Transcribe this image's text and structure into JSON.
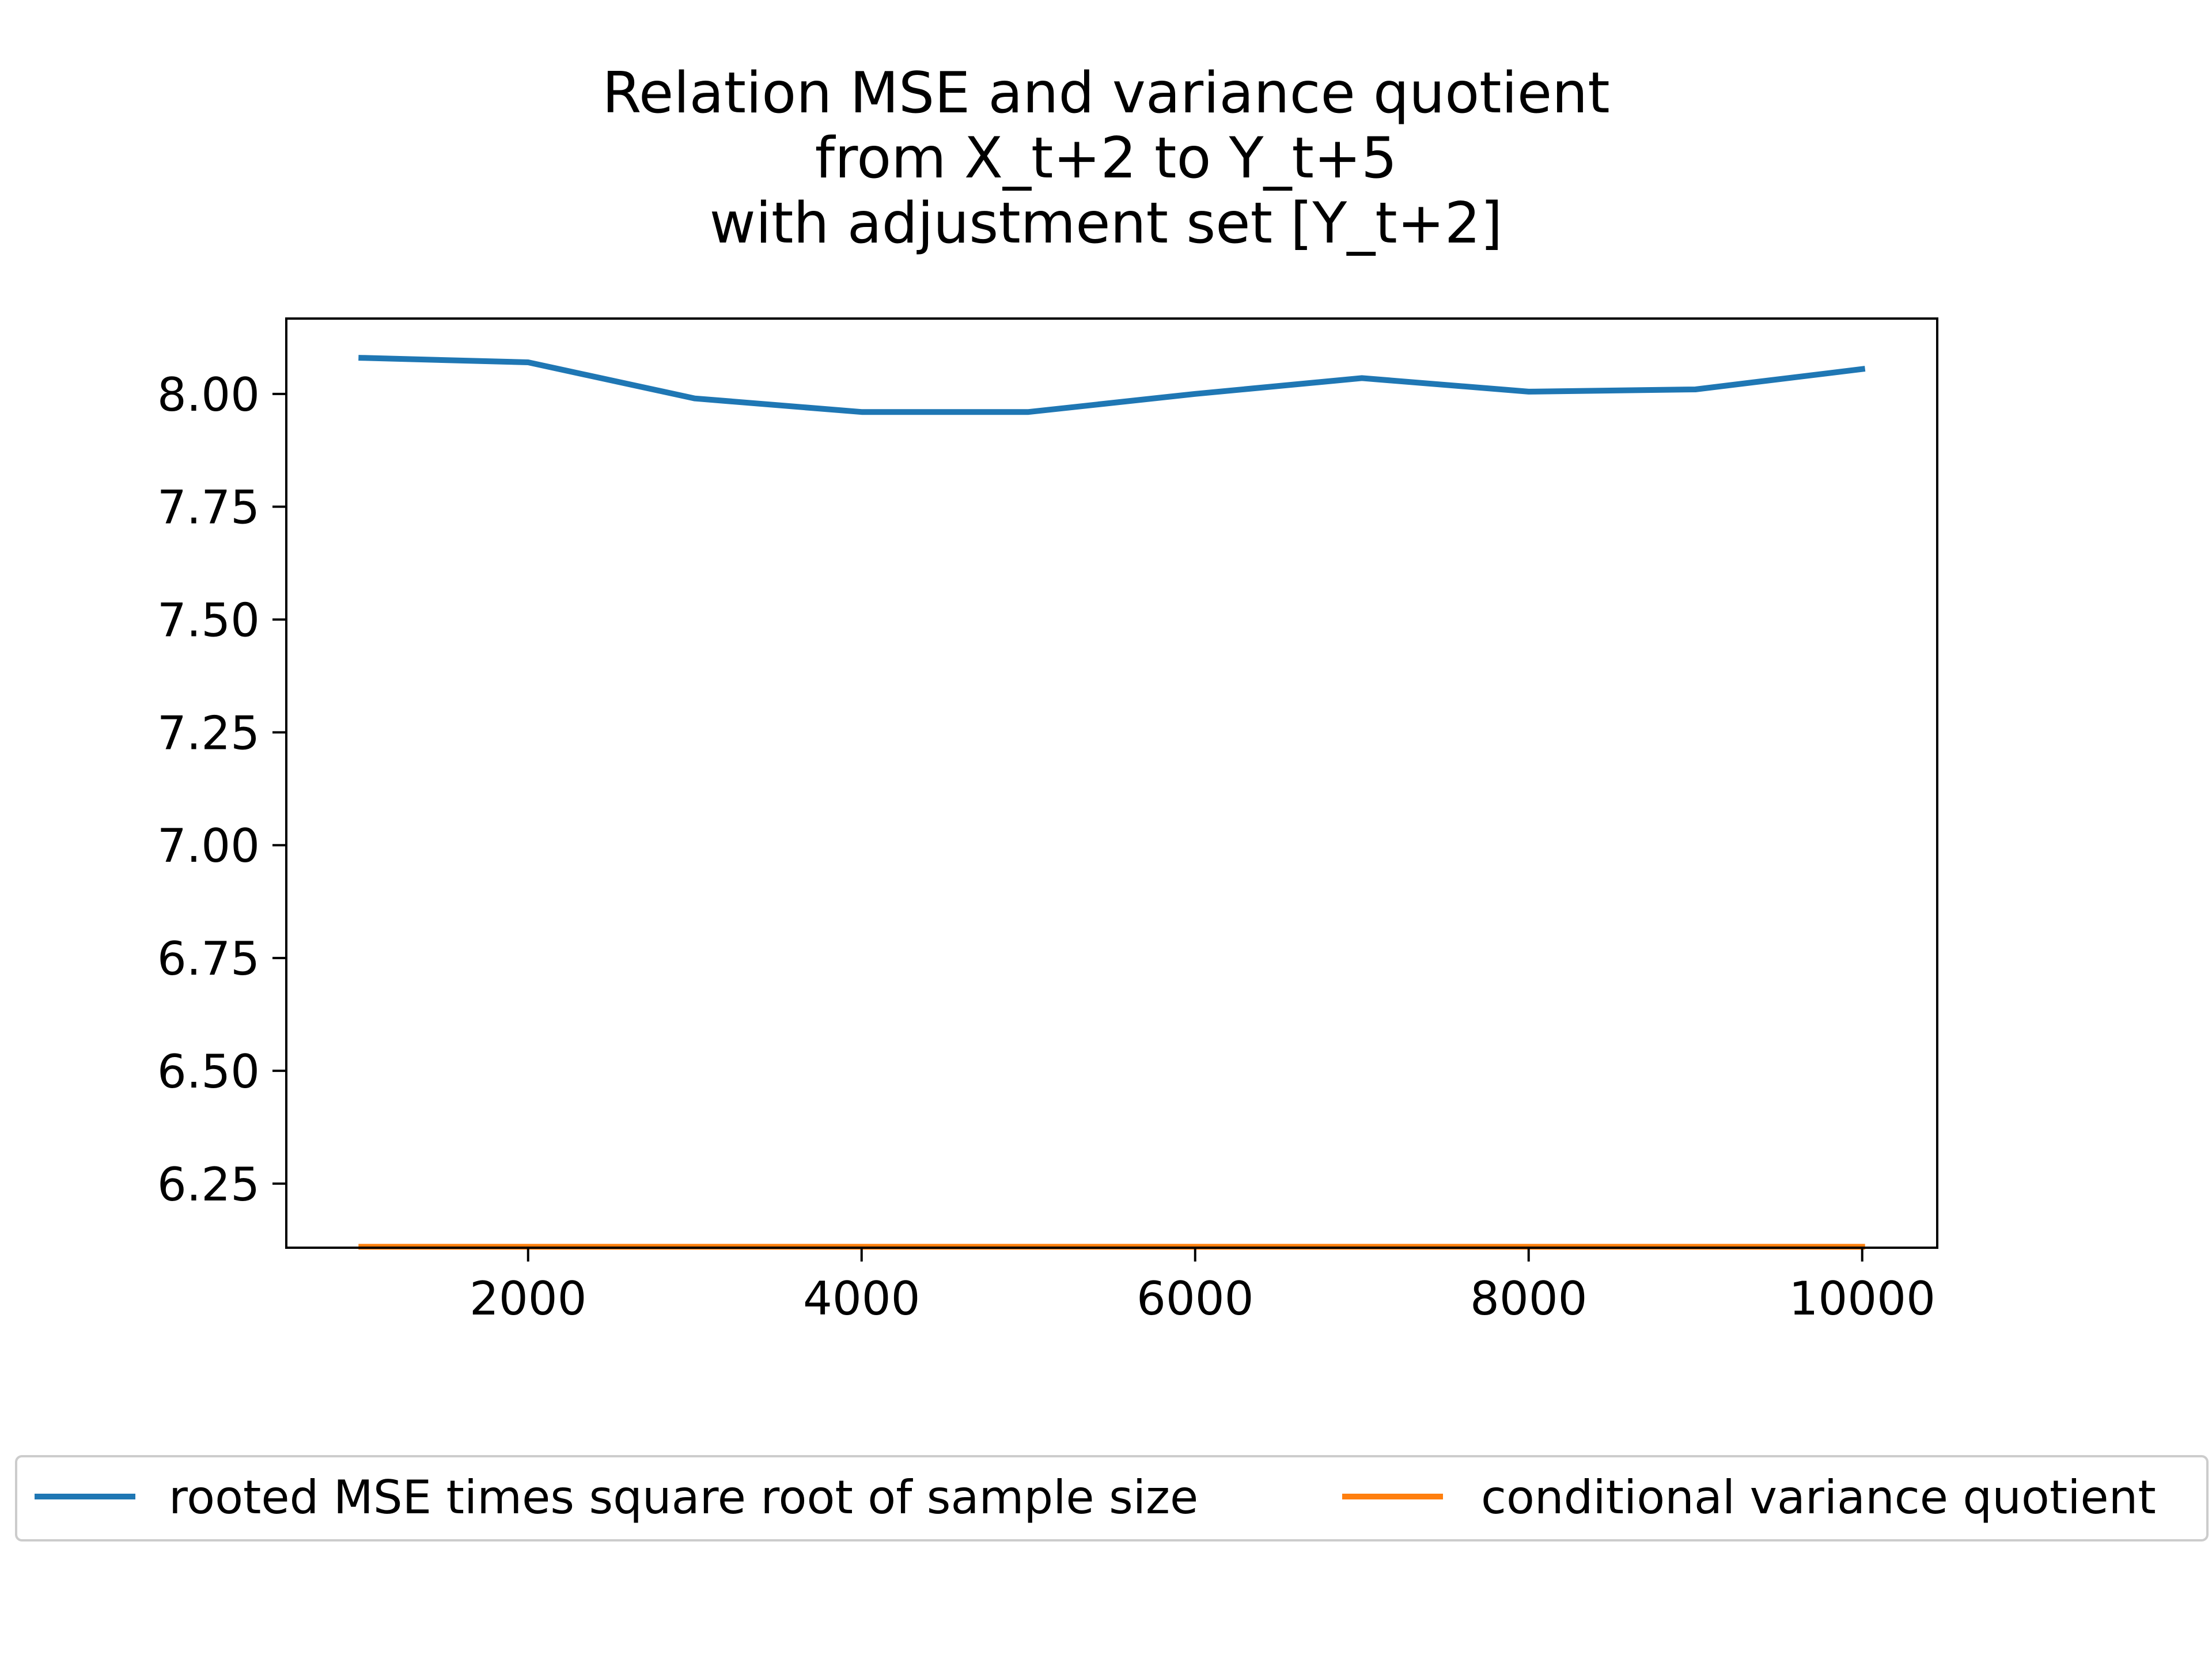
{
  "chart_data": {
    "type": "line",
    "title": [
      "Relation MSE and variance quotient",
      "from X_t+2 to Y_t+5",
      "with adjustment set [Y_t+2]"
    ],
    "xlabel": "",
    "ylabel": "",
    "xlim": [
      550,
      10450
    ],
    "ylim": [
      6.108,
      8.167
    ],
    "xticks": [
      2000,
      4000,
      6000,
      8000,
      10000
    ],
    "xtick_labels": [
      "2000",
      "4000",
      "6000",
      "8000",
      "10000"
    ],
    "yticks": [
      6.25,
      6.5,
      6.75,
      7.0,
      7.25,
      7.5,
      7.75,
      8.0
    ],
    "ytick_labels": [
      "6.25",
      "6.50",
      "6.75",
      "7.00",
      "7.25",
      "7.50",
      "7.75",
      "8.00"
    ],
    "grid": false,
    "legend_position": "bottom-outside",
    "x": [
      1000,
      2000,
      3000,
      4000,
      5000,
      6000,
      7000,
      8000,
      9000,
      10000
    ],
    "series": [
      {
        "name": "rooted MSE times square root of sample size",
        "color": "#1f77b4",
        "values": [
          8.08,
          8.07,
          7.99,
          7.96,
          7.96,
          8.0,
          8.035,
          8.005,
          8.01,
          8.055
        ]
      },
      {
        "name": "conditional variance quotient",
        "color": "#ff7f0e",
        "values": [
          6.11,
          6.11,
          6.11,
          6.11,
          6.11,
          6.11,
          6.11,
          6.11,
          6.11,
          6.11
        ]
      }
    ]
  }
}
